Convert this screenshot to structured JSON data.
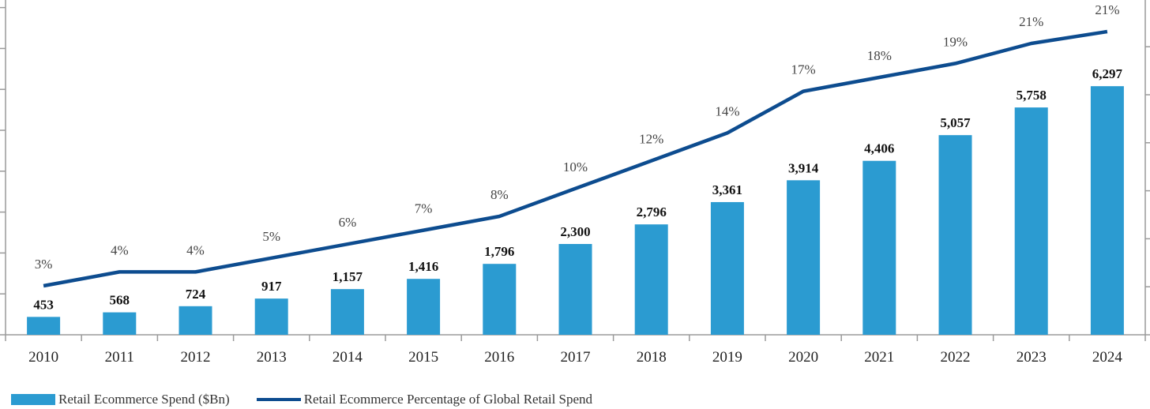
{
  "chart_data": {
    "type": "bar",
    "categories": [
      "2010",
      "2011",
      "2012",
      "2013",
      "2014",
      "2015",
      "2016",
      "2017",
      "2018",
      "2019",
      "2020",
      "2021",
      "2022",
      "2023",
      "2024"
    ],
    "series": [
      {
        "name": "Retail Ecommerce Spend ($Bn)",
        "type": "bar",
        "values": [
          453,
          568,
          724,
          917,
          1157,
          1416,
          1796,
          2300,
          2796,
          3361,
          3914,
          4406,
          5057,
          5758,
          6297
        ],
        "labels": [
          "453",
          "568",
          "724",
          "917",
          "1,157",
          "1,416",
          "1,796",
          "2,300",
          "2,796",
          "3,361",
          "3,914",
          "4,406",
          "5,057",
          "5,758",
          "6,297"
        ],
        "color": "#2b9bd1"
      },
      {
        "name": "Retail Ecommerce Percentage of Global Retail Spend",
        "type": "line",
        "values": [
          3,
          4,
          4,
          5,
          6,
          7,
          8,
          10,
          12,
          14,
          17,
          18,
          19,
          21,
          21
        ],
        "labels": [
          "3%",
          "4%",
          "4%",
          "5%",
          "6%",
          "7%",
          "8%",
          "10%",
          "12%",
          "14%",
          "17%",
          "18%",
          "19%",
          "21%",
          "21%"
        ],
        "color": "#0d4c8f"
      }
    ],
    "ylim": [
      0,
      7000
    ],
    "y2lim": [
      0,
      24
    ],
    "grid": false,
    "legend_position": "bottom-left"
  }
}
